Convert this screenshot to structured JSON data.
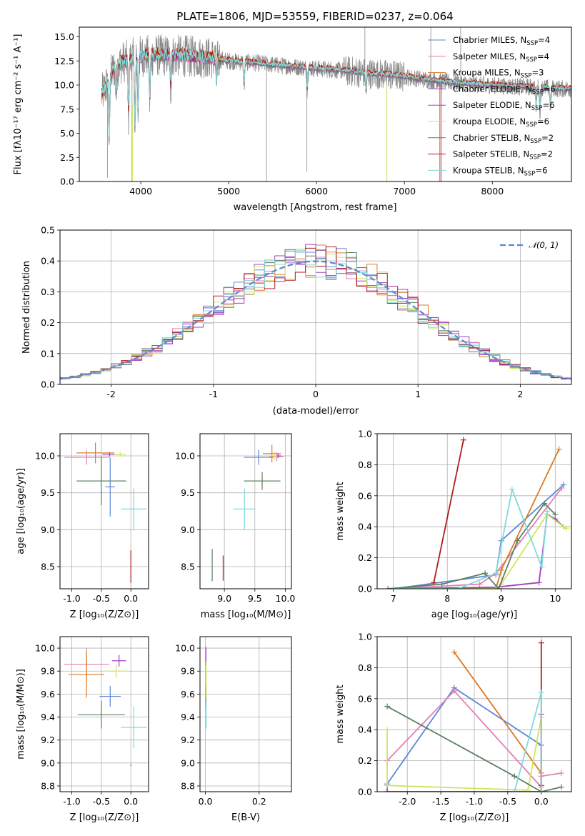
{
  "colors": {
    "Chabrier MILES": "#5b86d8",
    "Salpeter MILES": "#e47fb6",
    "Kroupa MILES": "#dd7a24",
    "Chabrier ELODIE": "#a23fc4",
    "Salpeter ELODIE": "#a23fc4",
    "Kroupa ELODIE": "#cfe65e",
    "Chabrier STELIB": "#5e8060",
    "Salpeter STELIB": "#b01e1e",
    "Kroupa STELIB": "#7fdada",
    "data": "#8a8a8a",
    "normal": "#5b86d8",
    "grid": "#b0b0b0"
  },
  "chart_data": [
    {
      "type": "line",
      "title": "PLATE=1806, MJD=53559, FIBERID=0237, z=0.064",
      "xlabel": "wavelength [Angstrom, rest frame]",
      "ylabel": "Flux [fλ10⁻¹⁷ erg cm⁻² s⁻¹ A⁻¹]",
      "xlim": [
        3300,
        8900
      ],
      "ylim": [
        0,
        16
      ],
      "xticks": [
        4000,
        5000,
        6000,
        7000,
        8000
      ],
      "yticks": [
        0.0,
        2.5,
        5.0,
        7.5,
        10.0,
        12.5,
        15.0
      ],
      "grid": false,
      "legend_position": "right",
      "legend": [
        {
          "base": "Chabrier MILES, N",
          "sub": "SSP",
          "suffix": "=4"
        },
        {
          "base": "Salpeter MILES, N",
          "sub": "SSP",
          "suffix": "=4"
        },
        {
          "base": "Kroupa MILES, N",
          "sub": "SSP",
          "suffix": "=3"
        },
        {
          "base": "Chabrier ELODIE, N",
          "sub": "SSP",
          "suffix": "=6"
        },
        {
          "base": "Salpeter ELODIE, N",
          "sub": "SSP",
          "suffix": "=6"
        },
        {
          "base": "Kroupa ELODIE, N",
          "sub": "SSP",
          "suffix": "=6"
        },
        {
          "base": "Chabrier STELIB, N",
          "sub": "SSP",
          "suffix": "=2"
        },
        {
          "base": "Salpeter STELIB, N",
          "sub": "SSP",
          "suffix": "=2"
        },
        {
          "base": "Kroupa STELIB, N",
          "sub": "SSP",
          "suffix": "=6"
        }
      ],
      "continuum": {
        "x": [
          3560,
          3700,
          3800,
          3900,
          4000,
          4200,
          4500,
          4800,
          5000,
          5300,
          5600,
          6000,
          6300,
          6600,
          6900,
          7200,
          7500,
          7800,
          8100,
          8400,
          8800
        ],
        "y": [
          9.0,
          11.8,
          12.4,
          12.7,
          13.0,
          13.1,
          13.0,
          12.8,
          12.5,
          12.3,
          12.0,
          11.7,
          11.5,
          11.2,
          11.0,
          10.6,
          10.3,
          10.1,
          9.9,
          9.8,
          9.6
        ]
      },
      "absorption_lines": [
        {
          "x": 3640,
          "depth": 6.5
        },
        {
          "x": 3720,
          "depth": 3.0
        },
        {
          "x": 3860,
          "depth": 6.0
        },
        {
          "x": 3934,
          "depth": 8.0
        },
        {
          "x": 3969,
          "depth": 6.0
        },
        {
          "x": 4102,
          "depth": 5.0
        },
        {
          "x": 4340,
          "depth": 3.5
        },
        {
          "x": 4861,
          "depth": 2.5
        },
        {
          "x": 5175,
          "depth": 2.5
        },
        {
          "x": 5893,
          "depth": 2.5
        },
        {
          "x": 6563,
          "depth": 2.0
        },
        {
          "x": 8498,
          "depth": 2.0
        },
        {
          "x": 8542,
          "depth": 2.5
        },
        {
          "x": 8662,
          "depth": 2.0
        }
      ],
      "data_spikes": [
        {
          "x": 3620,
          "y": 0.4
        },
        {
          "x": 3900,
          "y": 0.0
        },
        {
          "x": 5430,
          "y": 0.0
        },
        {
          "x": 5890,
          "y": 1.0
        },
        {
          "x": 6550,
          "y": 16.0
        },
        {
          "x": 6800,
          "y": 0.0
        },
        {
          "x": 7300,
          "y": 16.0
        },
        {
          "x": 7400,
          "y": 0.0
        },
        {
          "x": 7640,
          "y": 16.0
        }
      ],
      "blue_cut": 3555
    },
    {
      "type": "histogram",
      "xlabel": "(data-model)/error",
      "ylabel": "Normed distribution",
      "xlim": [
        -2.5,
        2.5
      ],
      "ylim": [
        0,
        0.5
      ],
      "xticks": [
        -2,
        -1,
        0,
        1,
        2
      ],
      "yticks": [
        0.0,
        0.1,
        0.2,
        0.3,
        0.4,
        0.5
      ],
      "grid": true,
      "bin_width": 0.1,
      "legend_label": "𝒩(0, 1)",
      "normal": {
        "mean": 0,
        "sigma": 1
      }
    },
    {
      "type": "scatter",
      "xlabel": "Z [log₁₀(Z/Z⊙)]",
      "ylabel": "age  [log₁₀(age/yr)]",
      "xlim": [
        -1.2,
        0.3
      ],
      "ylim": [
        8.2,
        10.3
      ],
      "xticks": [
        -1.0,
        -0.5,
        0.0
      ],
      "yticks": [
        8.5,
        9.0,
        9.5,
        10.0
      ],
      "grid": true,
      "points": [
        {
          "model": "Chabrier MILES",
          "x": -0.35,
          "y": 9.58,
          "xerr": 0.08,
          "yerr": 0.4
        },
        {
          "model": "Salpeter MILES",
          "x": -0.75,
          "y": 9.98,
          "xerr": 0.38,
          "yerr": 0.1
        },
        {
          "model": "Kroupa MILES",
          "x": -0.6,
          "y": 10.04,
          "xerr": 0.32,
          "yerr": 0.14
        },
        {
          "model": "Chabrier ELODIE",
          "x": -0.36,
          "y": 10.02,
          "xerr": 0.12,
          "yerr": 0.03
        },
        {
          "model": "Kroupa ELODIE",
          "x": -0.18,
          "y": 10.02,
          "xerr": 0.1,
          "yerr": 0.03
        },
        {
          "model": "Chabrier STELIB",
          "x": -0.5,
          "y": 9.66,
          "xerr": 0.42,
          "yerr": 0.33
        },
        {
          "model": "Salpeter STELIB",
          "x": 0.0,
          "y": 8.5,
          "xerr": 0.005,
          "yerr": 0.22
        },
        {
          "model": "Kroupa STELIB",
          "x": 0.05,
          "y": 9.28,
          "xerr": 0.22,
          "yerr": 0.28
        }
      ]
    },
    {
      "type": "scatter",
      "xlabel": "mass [log₁₀(M/M⊙)]",
      "ylabel": "",
      "xlim": [
        8.6,
        10.1
      ],
      "ylim": [
        8.2,
        10.3
      ],
      "xticks": [
        9.0,
        9.5,
        10.0
      ],
      "yticks": [
        8.5,
        9.0,
        9.5,
        10.0
      ],
      "grid": true,
      "points": [
        {
          "model": "Chabrier MILES",
          "x": 9.56,
          "y": 9.98,
          "xerr": 0.24,
          "yerr": 0.1
        },
        {
          "model": "Salpeter MILES",
          "x": 9.86,
          "y": 9.99,
          "xerr": 0.12,
          "yerr": 0.06
        },
        {
          "model": "Kroupa MILES",
          "x": 9.78,
          "y": 10.03,
          "xerr": 0.15,
          "yerr": 0.12
        },
        {
          "model": "Chabrier ELODIE",
          "x": 9.88,
          "y": 10.0,
          "xerr": 0.05,
          "yerr": 0.03
        },
        {
          "model": "Kroupa ELODIE",
          "x": 9.82,
          "y": 10.0,
          "xerr": 0.05,
          "yerr": 0.06
        },
        {
          "model": "Chabrier STELIB",
          "x": 9.62,
          "y": 9.66,
          "xerr": 0.3,
          "yerr": 0.12
        },
        {
          "model": "Salpeter STELIB",
          "x": 8.98,
          "y": 8.48,
          "xerr": 0.005,
          "yerr": 0.17
        },
        {
          "model": "Kroupa STELIB",
          "x": 9.33,
          "y": 9.28,
          "xerr": 0.18,
          "yerr": 0.28
        },
        {
          "model": "Chabrier STELIB",
          "x": 8.8,
          "y": 8.52,
          "xerr": 0.005,
          "yerr": 0.22
        }
      ]
    },
    {
      "type": "line",
      "xlabel": "age  [log₁₀(age/yr)]",
      "ylabel": "mass weight",
      "xlim": [
        6.7,
        10.3
      ],
      "ylim": [
        0,
        1.0
      ],
      "xticks": [
        7,
        8,
        9,
        10
      ],
      "yticks": [
        0.0,
        0.2,
        0.4,
        0.6,
        0.8,
        1.0
      ],
      "grid": true,
      "series": [
        {
          "model": "Chabrier MILES",
          "x": [
            7.0,
            8.9,
            9.0,
            10.15
          ],
          "y": [
            0.0,
            0.09,
            0.31,
            0.67
          ]
        },
        {
          "model": "Salpeter MILES",
          "x": [
            7.0,
            8.6,
            8.9,
            10.12
          ],
          "y": [
            0.0,
            0.03,
            0.1,
            0.65
          ]
        },
        {
          "model": "Kroupa MILES",
          "x": [
            8.9,
            9.0,
            10.07
          ],
          "y": [
            0.0,
            0.12,
            0.9
          ]
        },
        {
          "model": "Chabrier ELODIE",
          "x": [
            7.0,
            8.9,
            9.7,
            9.85,
            10.0,
            10.15
          ],
          "y": [
            0.0,
            0.01,
            0.04,
            0.48,
            0.45,
            0.4
          ]
        },
        {
          "model": "Kroupa ELODIE",
          "x": [
            7.0,
            8.9,
            9.0,
            9.85,
            10.15,
            10.2
          ],
          "y": [
            0.0,
            0.0,
            0.03,
            0.48,
            0.4,
            0.39
          ]
        },
        {
          "model": "Chabrier STELIB",
          "x": [
            6.9,
            7.9,
            8.7,
            8.95,
            9.3,
            9.8,
            10.0
          ],
          "y": [
            0.0,
            0.03,
            0.1,
            0.0,
            0.31,
            0.55,
            0.48
          ]
        },
        {
          "model": "Salpeter STELIB",
          "x": [
            7.75,
            8.3
          ],
          "y": [
            0.04,
            0.96
          ]
        },
        {
          "model": "Kroupa STELIB",
          "x": [
            7.0,
            8.2,
            8.9,
            9.2,
            9.75,
            9.85
          ],
          "y": [
            0.0,
            0.0,
            0.1,
            0.64,
            0.14,
            0.5
          ]
        }
      ]
    },
    {
      "type": "scatter",
      "xlabel": "Z [log₁₀(Z/Z⊙)]",
      "ylabel": "mass [log₁₀(M/M⊙)]",
      "xlim": [
        -1.2,
        0.3
      ],
      "ylim": [
        8.75,
        10.1
      ],
      "xticks": [
        -1.0,
        -0.5,
        0.0
      ],
      "yticks": [
        8.8,
        9.0,
        9.2,
        9.4,
        9.6,
        9.8,
        10.0
      ],
      "grid": true,
      "points": [
        {
          "model": "Chabrier MILES",
          "x": -0.35,
          "y": 9.58,
          "xerr": 0.18,
          "yerr": 0.09
        },
        {
          "model": "Salpeter MILES",
          "x": -0.75,
          "y": 9.86,
          "xerr": 0.38,
          "yerr": 0.14
        },
        {
          "model": "Kroupa MILES",
          "x": -0.75,
          "y": 9.77,
          "xerr": 0.3,
          "yerr": 0.2
        },
        {
          "model": "Chabrier ELODIE",
          "x": -0.2,
          "y": 9.89,
          "xerr": 0.12,
          "yerr": 0.05
        },
        {
          "model": "Kroupa ELODIE",
          "x": -0.25,
          "y": 9.8,
          "xerr": 0.2,
          "yerr": 0.06
        },
        {
          "model": "Chabrier STELIB",
          "x": -0.5,
          "y": 9.42,
          "xerr": 0.4,
          "yerr": 0.12
        },
        {
          "model": "Salpeter STELIB",
          "x": 0.0,
          "y": 8.98,
          "xerr": 0.005,
          "yerr": 0.005
        },
        {
          "model": "Kroupa STELIB",
          "x": 0.05,
          "y": 9.31,
          "xerr": 0.22,
          "yerr": 0.18
        }
      ]
    },
    {
      "type": "scatter",
      "xlabel": "E(B-V)",
      "ylabel": "",
      "xlim": [
        -0.02,
        0.32
      ],
      "ylim": [
        8.75,
        10.1
      ],
      "xticks": [
        0.0,
        0.2
      ],
      "yticks": [
        8.8,
        9.0,
        9.2,
        9.4,
        9.6,
        9.8,
        10.0
      ],
      "grid": true,
      "points": [
        {
          "model": "Chabrier MILES",
          "x": 0.002,
          "y": 9.58,
          "xerr": 0.001,
          "yerr": 0.09
        },
        {
          "model": "Chabrier ELODIE",
          "x": 0.002,
          "y": 9.93,
          "xerr": 0.001,
          "yerr": 0.08
        },
        {
          "model": "Kroupa ELODIE",
          "x": 0.003,
          "y": 9.72,
          "xerr": 0.001,
          "yerr": 0.16
        },
        {
          "model": "Kroupa STELIB",
          "x": 0.003,
          "y": 9.42,
          "xerr": 0.001,
          "yerr": 0.12
        }
      ]
    },
    {
      "type": "line",
      "xlabel": "Z [log₁₀(Z/Z⊙)]",
      "ylabel": "mass weight",
      "xlim": [
        -2.45,
        0.45
      ],
      "ylim": [
        0,
        1.0
      ],
      "xticks": [
        -2.0,
        -1.5,
        -1.0,
        -0.5,
        0.0
      ],
      "yticks": [
        0.0,
        0.2,
        0.4,
        0.6,
        0.8,
        1.0
      ],
      "grid": true,
      "series": [
        {
          "model": "Chabrier MILES",
          "x": [
            -2.3,
            -1.3,
            0.0,
            0.0
          ],
          "y": [
            0.05,
            0.67,
            0.3,
            0.0
          ]
        },
        {
          "model": "Salpeter MILES",
          "x": [
            -2.3,
            -1.3,
            0.0,
            0.0,
            0.3
          ],
          "y": [
            0.2,
            0.65,
            0.03,
            0.1,
            0.12
          ]
        },
        {
          "model": "Kroupa MILES",
          "x": [
            -1.3,
            0.0,
            0.0
          ],
          "y": [
            0.9,
            0.12,
            0.0
          ]
        },
        {
          "model": "Chabrier ELODIE",
          "x": [
            -2.3,
            -2.3,
            0.0,
            0.0
          ],
          "y": [
            0.04,
            0.0,
            0.0,
            0.5
          ]
        },
        {
          "model": "Kroupa ELODIE",
          "x": [
            -2.3,
            -2.3,
            -0.2,
            0.0
          ],
          "y": [
            0.4,
            0.04,
            0.01,
            0.48
          ]
        },
        {
          "model": "Chabrier STELIB",
          "x": [
            -2.3,
            -0.4,
            0.0,
            0.3
          ],
          "y": [
            0.55,
            0.1,
            0.0,
            0.03
          ]
        },
        {
          "model": "Salpeter STELIB",
          "x": [
            0.0,
            0.0
          ],
          "y": [
            0.96,
            0.04
          ]
        },
        {
          "model": "Kroupa STELIB",
          "x": [
            -0.4,
            0.0,
            0.0
          ],
          "y": [
            0.0,
            0.64,
            0.0
          ]
        }
      ]
    }
  ]
}
